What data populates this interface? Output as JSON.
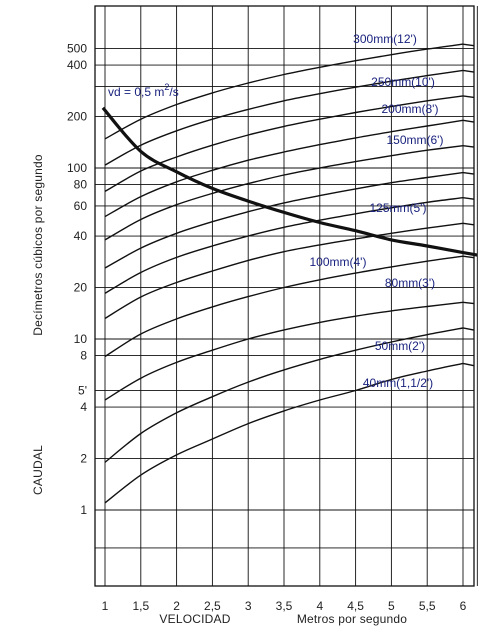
{
  "chart_data": {
    "type": "line",
    "title": "",
    "xlabel": "VELOCIDAD",
    "xlabel_unit": "Metros por segundo",
    "ylabel_prefix": "CAUDAL",
    "ylabel": "Decímetros cúbicos por segundo",
    "x_scale": "linear",
    "y_scale": "log",
    "xlim": [
      0.95,
      6.2
    ],
    "ylim": [
      0.45,
      620
    ],
    "grid": true,
    "x_ticks": [
      {
        "v": 1,
        "label": "1"
      },
      {
        "v": 1.5,
        "label": "1,5"
      },
      {
        "v": 2,
        "label": "2"
      },
      {
        "v": 2.5,
        "label": "2,5"
      },
      {
        "v": 3,
        "label": "3"
      },
      {
        "v": 3.5,
        "label": "3,5"
      },
      {
        "v": 4,
        "label": "4"
      },
      {
        "v": 4.5,
        "label": "4,5"
      },
      {
        "v": 5,
        "label": "5"
      },
      {
        "v": 5.5,
        "label": "5,5"
      },
      {
        "v": 6,
        "label": "6"
      }
    ],
    "y_ticks": [
      {
        "v": 1,
        "label": "1"
      },
      {
        "v": 2,
        "label": "2"
      },
      {
        "v": 4,
        "label": "4"
      },
      {
        "v": 5,
        "label": "5'"
      },
      {
        "v": 8,
        "label": "8"
      },
      {
        "v": 10,
        "label": "10"
      },
      {
        "v": 20,
        "label": "20"
      },
      {
        "v": 40,
        "label": "40"
      },
      {
        "v": 60,
        "label": "60"
      },
      {
        "v": 80,
        "label": "80"
      },
      {
        "v": 100,
        "label": "100"
      },
      {
        "v": 200,
        "label": "200"
      },
      {
        "v": 400,
        "label": "400"
      },
      {
        "v": 500,
        "label": "500"
      }
    ],
    "series": [
      {
        "name": "40mm(1,1/2')",
        "x": [
          1,
          1.5,
          2,
          2.5,
          3,
          3.5,
          4,
          4.5,
          5,
          5.5,
          6
        ],
        "values": [
          1.1,
          1.6,
          2.1,
          2.6,
          3.2,
          3.8,
          4.4,
          5.0,
          5.8,
          6.5,
          7.2
        ]
      },
      {
        "name": "",
        "x": [
          1,
          1.5,
          2,
          2.5,
          3,
          3.5,
          4,
          4.5,
          5,
          5.5,
          6
        ],
        "values": [
          1.9,
          2.8,
          3.7,
          4.6,
          5.6,
          6.6,
          7.6,
          8.6,
          9.6,
          10.6,
          11.6
        ]
      },
      {
        "name": "50mm(2')",
        "x": [
          1,
          1.5,
          2,
          2.5,
          3,
          3.5,
          4,
          4.5,
          5,
          5.5,
          6
        ],
        "values": [
          4.4,
          5.9,
          7.3,
          8.6,
          10,
          11.3,
          12.5,
          13.6,
          14.6,
          15.5,
          16.4
        ]
      },
      {
        "name": "",
        "x": [
          1,
          1.5,
          2,
          2.5,
          3,
          3.5,
          4,
          4.5,
          5,
          5.5,
          6
        ],
        "values": [
          7.9,
          10.7,
          13.1,
          15.4,
          17.7,
          20,
          22.2,
          24.3,
          26.4,
          28.5,
          30.5
        ]
      },
      {
        "name": "80mm(3')",
        "x": [
          1,
          1.5,
          2,
          2.5,
          3,
          3.5,
          4,
          4.5,
          5,
          5.5,
          6
        ],
        "values": [
          13.2,
          17.6,
          21.4,
          25,
          28.8,
          32.4,
          35.5,
          38.5,
          41.5,
          44.5,
          47.5
        ]
      },
      {
        "name": "100mm(4')",
        "x": [
          1,
          1.5,
          2,
          2.5,
          3,
          3.5,
          4,
          4.5,
          5,
          5.5,
          6
        ],
        "values": [
          18.5,
          24.5,
          30,
          35,
          40,
          45,
          49.5,
          54,
          58.5,
          63,
          67
        ]
      },
      {
        "name": "",
        "x": [
          1,
          1.5,
          2,
          2.5,
          3,
          3.5,
          4,
          4.5,
          5,
          5.5,
          6
        ],
        "values": [
          26,
          34,
          41.5,
          48.5,
          55.5,
          62.5,
          69,
          75.5,
          82,
          88,
          94
        ]
      },
      {
        "name": "125mm(5')",
        "x": [
          1,
          1.5,
          2,
          2.5,
          3,
          3.5,
          4,
          4.5,
          5,
          5.5,
          6
        ],
        "values": [
          38,
          50,
          61,
          71,
          81,
          91,
          100,
          109,
          118,
          127,
          135
        ]
      },
      {
        "name": "150mm(6')",
        "x": [
          1,
          1.5,
          2,
          2.5,
          3,
          3.5,
          4,
          4.5,
          5,
          5.5,
          6
        ],
        "values": [
          52,
          68,
          83,
          97,
          111,
          124,
          137,
          150,
          163,
          176,
          190
        ]
      },
      {
        "name": "200mm(8')",
        "x": [
          1,
          1.5,
          2,
          2.5,
          3,
          3.5,
          4,
          4.5,
          5,
          5.5,
          6
        ],
        "values": [
          73,
          96,
          116,
          136,
          156,
          175,
          193,
          211,
          229,
          247,
          264
        ]
      },
      {
        "name": "250mm(10')",
        "x": [
          1,
          1.5,
          2,
          2.5,
          3,
          3.5,
          4,
          4.5,
          5,
          5.5,
          6
        ],
        "values": [
          104,
          136,
          165,
          193,
          220,
          247,
          272,
          297,
          322,
          347,
          372
        ]
      },
      {
        "name": "300mm(12')",
        "x": [
          1,
          1.5,
          2,
          2.5,
          3,
          3.5,
          4,
          4.5,
          5,
          5.5,
          6
        ],
        "values": [
          148,
          193,
          235,
          275,
          314,
          352,
          388,
          424,
          460,
          496,
          530
        ]
      }
    ],
    "highlight_curve": {
      "name": "vd = 0,5 m²/s",
      "label_main": "vd = 0,5 m",
      "label_sup": "2",
      "label_tail": "/s",
      "x": [
        0.97,
        1.5,
        2,
        2.5,
        3,
        3.5,
        4,
        4.5,
        5,
        5.5,
        6,
        6.2
      ],
      "values": [
        225,
        125,
        95,
        76,
        64,
        55,
        48,
        43,
        38,
        35,
        32,
        31
      ]
    }
  }
}
